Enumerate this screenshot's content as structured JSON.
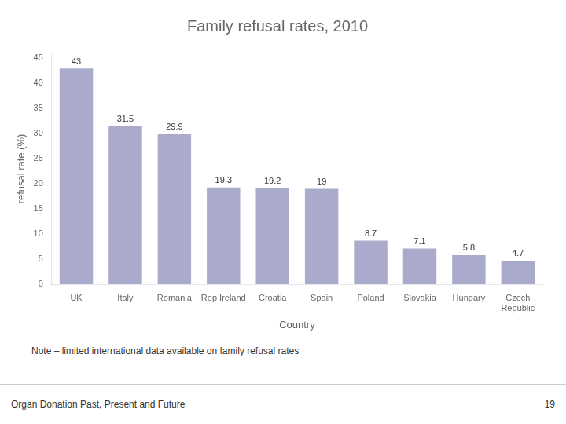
{
  "chart_data": {
    "type": "bar",
    "title": "Family refusal rates, 2010",
    "categories": [
      "UK",
      "Italy",
      "Romania",
      "Rep Ireland",
      "Croatia",
      "Spain",
      "Poland",
      "Slovakia",
      "Hungary",
      "Czech\nRepublic"
    ],
    "values": [
      43,
      31.5,
      29.9,
      19.3,
      19.2,
      19,
      8.7,
      7.1,
      5.8,
      4.7
    ],
    "color": "#aaaacc",
    "xlabel": "Country",
    "ylabel": "refusal rate (%)",
    "ylim": [
      0,
      46
    ],
    "yticks": [
      0,
      5,
      10,
      15,
      20,
      25,
      30,
      35,
      40,
      45
    ],
    "grid": false,
    "data_labels": true,
    "annotations": [
      "Note – limited international data available on family refusal rates",
      "Organ Donation Past, Present and Future",
      "19"
    ]
  }
}
